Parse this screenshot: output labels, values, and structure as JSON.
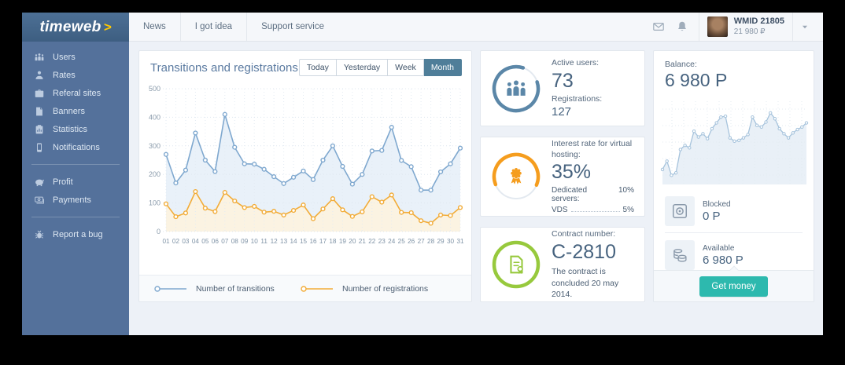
{
  "brand": {
    "logo_text": "timeweb",
    "logo_arrow": ">"
  },
  "topnav": {
    "items": [
      "News",
      "I got idea",
      "Support service"
    ]
  },
  "header_right": {
    "icons": [
      "mail-icon",
      "bell-icon",
      "chevron-down-icon"
    ],
    "wmid": "WMID 21805",
    "wallet": "21 980 ₽"
  },
  "sidebar": {
    "groups": [
      {
        "items": [
          {
            "icon": "users-icon",
            "label": "Users"
          },
          {
            "icon": "rates-icon",
            "label": "Rates"
          },
          {
            "icon": "referral-icon",
            "label": "Referal sites"
          },
          {
            "icon": "banners-icon",
            "label": "Banners"
          },
          {
            "icon": "statistics-icon",
            "label": "Statistics"
          },
          {
            "icon": "notifications-icon",
            "label": "Notifications"
          }
        ]
      },
      {
        "items": [
          {
            "icon": "profit-icon",
            "label": "Profit"
          },
          {
            "icon": "payments-icon",
            "label": "Payments"
          }
        ]
      },
      {
        "items": [
          {
            "icon": "bug-icon",
            "label": "Report a bug"
          }
        ]
      }
    ]
  },
  "chart_panel": {
    "title": "Transitions and registrations",
    "range_buttons": [
      {
        "label": "Today",
        "active": false
      },
      {
        "label": "Yesterday",
        "active": false
      },
      {
        "label": "Week",
        "active": false
      },
      {
        "label": "Month",
        "active": true
      }
    ],
    "legend": [
      {
        "label": "Number of transitions",
        "color": "#7fa8cf"
      },
      {
        "label": "Number of registrations",
        "color": "#f2ac38"
      }
    ]
  },
  "cards": [
    {
      "icon": "people-group-icon",
      "accent": "#5b87a8",
      "ring": {
        "fraction": 0.85,
        "rotate": -18
      },
      "rows": [
        {
          "label": "Active users:",
          "value": "73"
        },
        {
          "label": "Registrations:",
          "value": "127"
        }
      ]
    },
    {
      "icon": "medal-icon",
      "accent": "#f59d1e",
      "ring": {
        "fraction": 0.62,
        "rotate": 159
      },
      "label": "Interest rate for virtual hosting:",
      "value": "35%",
      "details": [
        {
          "label": "Dedicated servers:",
          "value": "10%"
        },
        {
          "label": "VDS",
          "value": "5%"
        }
      ]
    },
    {
      "icon": "contract-icon",
      "accent": "#97c93d",
      "ring": {
        "fraction": 1,
        "rotate": 0
      },
      "label": "Contract number:",
      "value": "C-2810",
      "note": "The contract is concluded 20 may 2014."
    }
  ],
  "balance_panel": {
    "label": "Balance:",
    "value": "6 980 P",
    "rows": [
      {
        "icon": "safe-icon",
        "label": "Blocked",
        "value": "0 P"
      },
      {
        "icon": "coins-icon",
        "label": "Available",
        "value": "6 980 P"
      }
    ],
    "button": "Get money",
    "button_color": "#2db9ae"
  },
  "chart_data": [
    {
      "type": "line",
      "title": "Transitions and registrations",
      "x": [
        "01",
        "02",
        "03",
        "04",
        "05",
        "06",
        "07",
        "08",
        "09",
        "10",
        "11",
        "12",
        "13",
        "14",
        "15",
        "16",
        "17",
        "18",
        "19",
        "20",
        "21",
        "22",
        "23",
        "24",
        "25",
        "26",
        "27",
        "28",
        "29",
        "30",
        "31"
      ],
      "series": [
        {
          "name": "Number of transitions",
          "color": "#7fa8cf",
          "area_fill": "#e9f1f9",
          "values": [
            270,
            170,
            215,
            345,
            250,
            210,
            410,
            295,
            237,
            236,
            218,
            192,
            168,
            190,
            212,
            182,
            250,
            300,
            228,
            166,
            200,
            282,
            284,
            365,
            249,
            227,
            145,
            145,
            209,
            237,
            292
          ]
        },
        {
          "name": "Number of registrations",
          "color": "#f2ac38",
          "area_fill": "#fbf3e2",
          "values": [
            97,
            52,
            65,
            140,
            82,
            70,
            137,
            107,
            84,
            88,
            68,
            71,
            58,
            74,
            93,
            45,
            79,
            115,
            76,
            53,
            69,
            122,
            103,
            128,
            67,
            66,
            38,
            29,
            58,
            56,
            84
          ]
        }
      ],
      "ylim": [
        0,
        500
      ],
      "yticks": [
        0,
        100,
        200,
        300,
        400,
        500
      ],
      "grid": true,
      "legend_position": "bottom"
    },
    {
      "type": "area",
      "title": "Balance trend",
      "color": "#a6c3dc",
      "area_fill": "#e9f0f7",
      "ylim": [
        0,
        100
      ],
      "values": [
        18,
        28,
        11,
        14,
        42,
        47,
        44,
        64,
        57,
        61,
        55,
        67,
        74,
        81,
        82,
        56,
        52,
        53,
        56,
        60,
        81,
        71,
        69,
        75,
        86,
        79,
        67,
        61,
        56,
        62,
        66,
        69,
        74
      ]
    }
  ]
}
